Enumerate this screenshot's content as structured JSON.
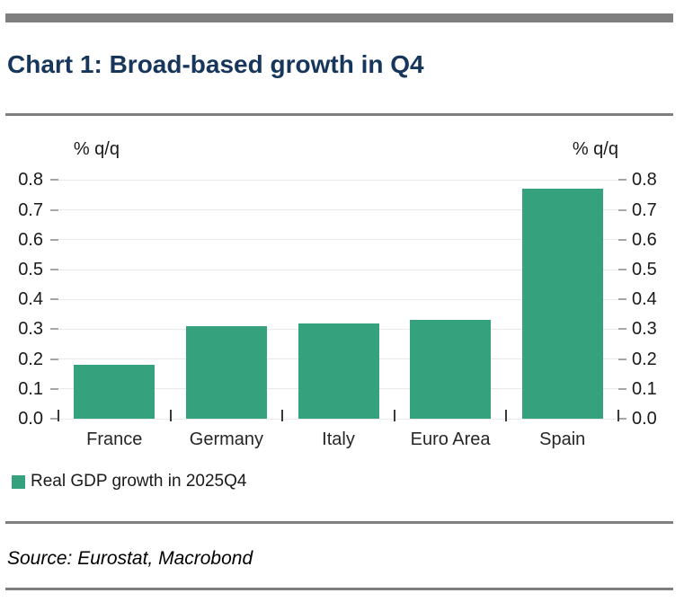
{
  "page": {
    "title": "Chart 1: Broad-based growth in Q4",
    "source": "Source: Eurostat, Macrobond"
  },
  "chart_data": {
    "type": "bar",
    "title": "Chart 1: Broad-based growth in Q4",
    "categories": [
      "France",
      "Germany",
      "Italy",
      "Euro Area",
      "Spain"
    ],
    "values": [
      0.18,
      0.31,
      0.32,
      0.33,
      0.77
    ],
    "series": [
      {
        "name": "Real GDP growth in 2025Q4",
        "values": [
          0.18,
          0.31,
          0.32,
          0.33,
          0.77
        ]
      }
    ],
    "legend_label": "Real GDP growth in 2025Q4",
    "unit_label_left": "% q/q",
    "unit_label_right": "% q/q",
    "ylim": [
      0,
      0.85
    ],
    "yticks": [
      0.0,
      0.1,
      0.2,
      0.3,
      0.4,
      0.5,
      0.6,
      0.7,
      0.8
    ],
    "ytick_format_decimals": 1,
    "grid": true,
    "legend_position": "bottom-left",
    "bar_color": "#36A17D"
  },
  "colors": {
    "divider_gray": "#7F7F7F",
    "title_navy": "#16365C",
    "bar_green": "#36A17D",
    "gridline": "#E9E9E9",
    "tick_gray": "#A6A6A6",
    "text": "#1A1A1A"
  }
}
